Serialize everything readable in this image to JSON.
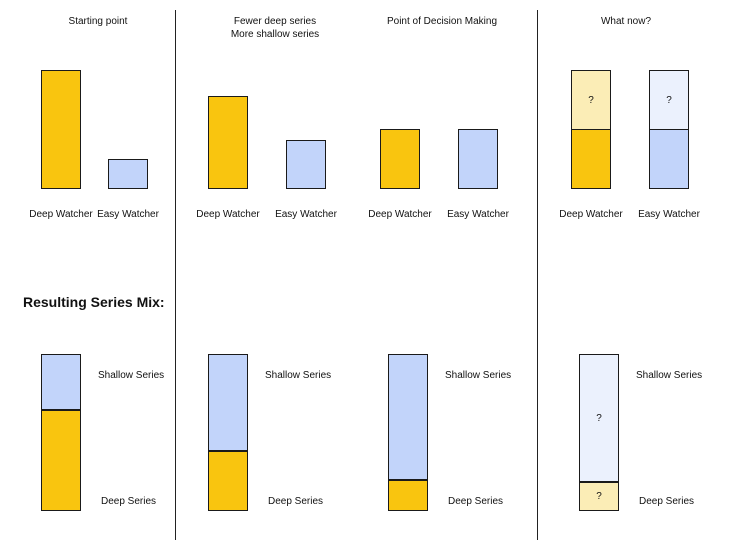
{
  "colors": {
    "deep": "#f9c50f",
    "easy": "#c2d4fa",
    "deep_light": "#fbedb6",
    "easy_light": "#ebf1fd",
    "outline": "#1a1a1a"
  },
  "panels": [
    {
      "title": "Starting point",
      "watchers": [
        {
          "label": "Deep Watcher",
          "level": 1.0,
          "color": "deep"
        },
        {
          "label": "Easy Watcher",
          "level": 0.25,
          "color": "easy"
        }
      ],
      "mix": {
        "shallow_share": 0.35,
        "deep_share": 0.65
      }
    },
    {
      "title_line1": "Fewer deep series",
      "title_line2": "More shallow series",
      "watchers": [
        {
          "label": "Deep Watcher",
          "level": 0.78,
          "color": "deep"
        },
        {
          "label": "Easy Watcher",
          "level": 0.41,
          "color": "easy"
        }
      ],
      "mix": {
        "shallow_share": 0.61,
        "deep_share": 0.39
      }
    },
    {
      "title": "Point of Decision Making",
      "watchers": [
        {
          "label": "Deep Watcher",
          "level": 0.5,
          "color": "deep"
        },
        {
          "label": "Easy Watcher",
          "level": 0.5,
          "color": "easy"
        }
      ],
      "mix": {
        "shallow_share": 0.8,
        "deep_share": 0.2
      }
    },
    {
      "title": "What now?",
      "watchers": [
        {
          "label": "Deep Watcher",
          "level": 0.5,
          "unknown_level": 0.5,
          "unknown_text": "?",
          "color": "deep"
        },
        {
          "label": "Easy Watcher",
          "level": 0.5,
          "unknown_level": 0.5,
          "unknown_text": "?",
          "color": "easy"
        }
      ],
      "mix": {
        "shallow_share": 0.81,
        "deep_share": 0.19,
        "shallow_text": "?",
        "deep_text": "?"
      }
    }
  ],
  "resulting_heading": "Resulting Series Mix:",
  "series_labels": {
    "shallow": "Shallow Series",
    "deep": "Deep Series"
  }
}
